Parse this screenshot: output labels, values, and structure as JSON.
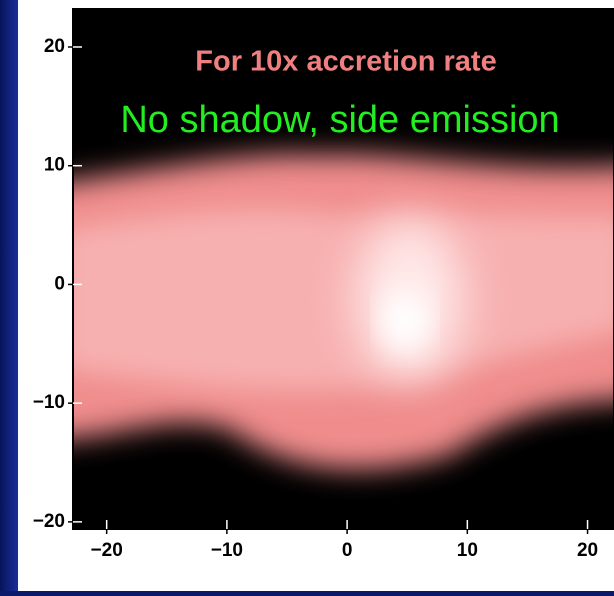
{
  "chart_data": {
    "type": "image",
    "annotations": [
      "For 10x accretion rate",
      "No shadow, side emission"
    ],
    "xlim": [
      -22.8,
      22.2
    ],
    "ylim": [
      -20.6,
      23.2
    ],
    "xticks": [
      {
        "value": -20,
        "label": "−20"
      },
      {
        "value": -10,
        "label": "−10"
      },
      0,
      10,
      20
    ],
    "yticks": [
      {
        "value": -20,
        "label": "−20"
      },
      {
        "value": -10,
        "label": "−10"
      },
      0,
      10,
      20
    ]
  }
}
